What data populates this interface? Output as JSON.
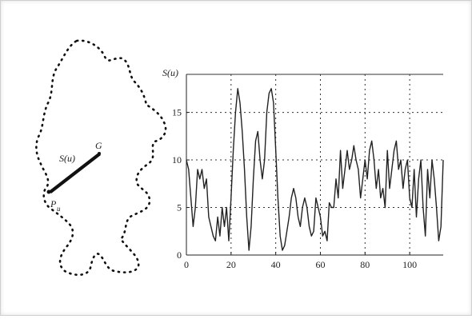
{
  "figure": {
    "contour_labels": {
      "distance": "S(u)",
      "centroid": "G",
      "point": "P",
      "point_sub": "u"
    }
  },
  "chart_data": {
    "type": "line",
    "title": "",
    "ylabel": "S(u)",
    "xlabel": "",
    "xlim": [
      0,
      115
    ],
    "ylim": [
      0,
      19
    ],
    "grid": true,
    "xticks": [
      0,
      20,
      40,
      60,
      80,
      100
    ],
    "yticks": [
      0,
      5,
      10,
      15
    ],
    "series": [
      {
        "x": [
          0,
          1,
          2,
          3,
          4,
          5,
          6,
          7,
          8,
          9,
          10,
          11,
          12,
          13,
          14,
          15,
          16,
          17,
          18,
          19,
          20,
          21,
          22,
          23,
          24,
          25,
          26,
          27,
          28,
          29,
          30,
          31,
          32,
          33,
          34,
          35,
          36,
          37,
          38,
          39,
          40,
          41,
          42,
          43,
          44,
          45,
          46,
          47,
          48,
          49,
          50,
          51,
          52,
          53,
          54,
          55,
          56,
          57,
          58,
          59,
          60,
          61,
          62,
          63,
          64,
          65,
          66,
          67,
          68,
          69,
          70,
          71,
          72,
          73,
          74,
          75,
          76,
          77,
          78,
          79,
          80,
          81,
          82,
          83,
          84,
          85,
          86,
          87,
          88,
          89,
          90,
          91,
          92,
          93,
          94,
          95,
          96,
          97,
          98,
          99,
          100,
          101,
          102,
          103,
          104,
          105,
          106,
          107,
          108,
          109,
          110,
          111,
          112,
          113,
          114,
          115
        ],
        "y": [
          10,
          9,
          6,
          3,
          5,
          9,
          8,
          9,
          7,
          8,
          4,
          3,
          2,
          1.5,
          4,
          2,
          5,
          3,
          5,
          1.5,
          6,
          11,
          15,
          17.5,
          16,
          13,
          9,
          4,
          0.5,
          3,
          8,
          12,
          13,
          10,
          8,
          10,
          15,
          17,
          17.5,
          16,
          11,
          6,
          2,
          0.5,
          1,
          2.5,
          4,
          6,
          7,
          6,
          4,
          3,
          5,
          6,
          5,
          3,
          2,
          2.5,
          6,
          5,
          4,
          2,
          2.5,
          1.5,
          5.5,
          5,
          5,
          8,
          6,
          11,
          7,
          9,
          11,
          9,
          10,
          11.5,
          10,
          9,
          6,
          8,
          10,
          8,
          11,
          12,
          10,
          7,
          9,
          6,
          7,
          5,
          11,
          7,
          9,
          11,
          12,
          9,
          10,
          7,
          9,
          10,
          6,
          5,
          9,
          4,
          8,
          10,
          5,
          2,
          9,
          6,
          10,
          8,
          5,
          1.5,
          3,
          10
        ]
      }
    ]
  }
}
